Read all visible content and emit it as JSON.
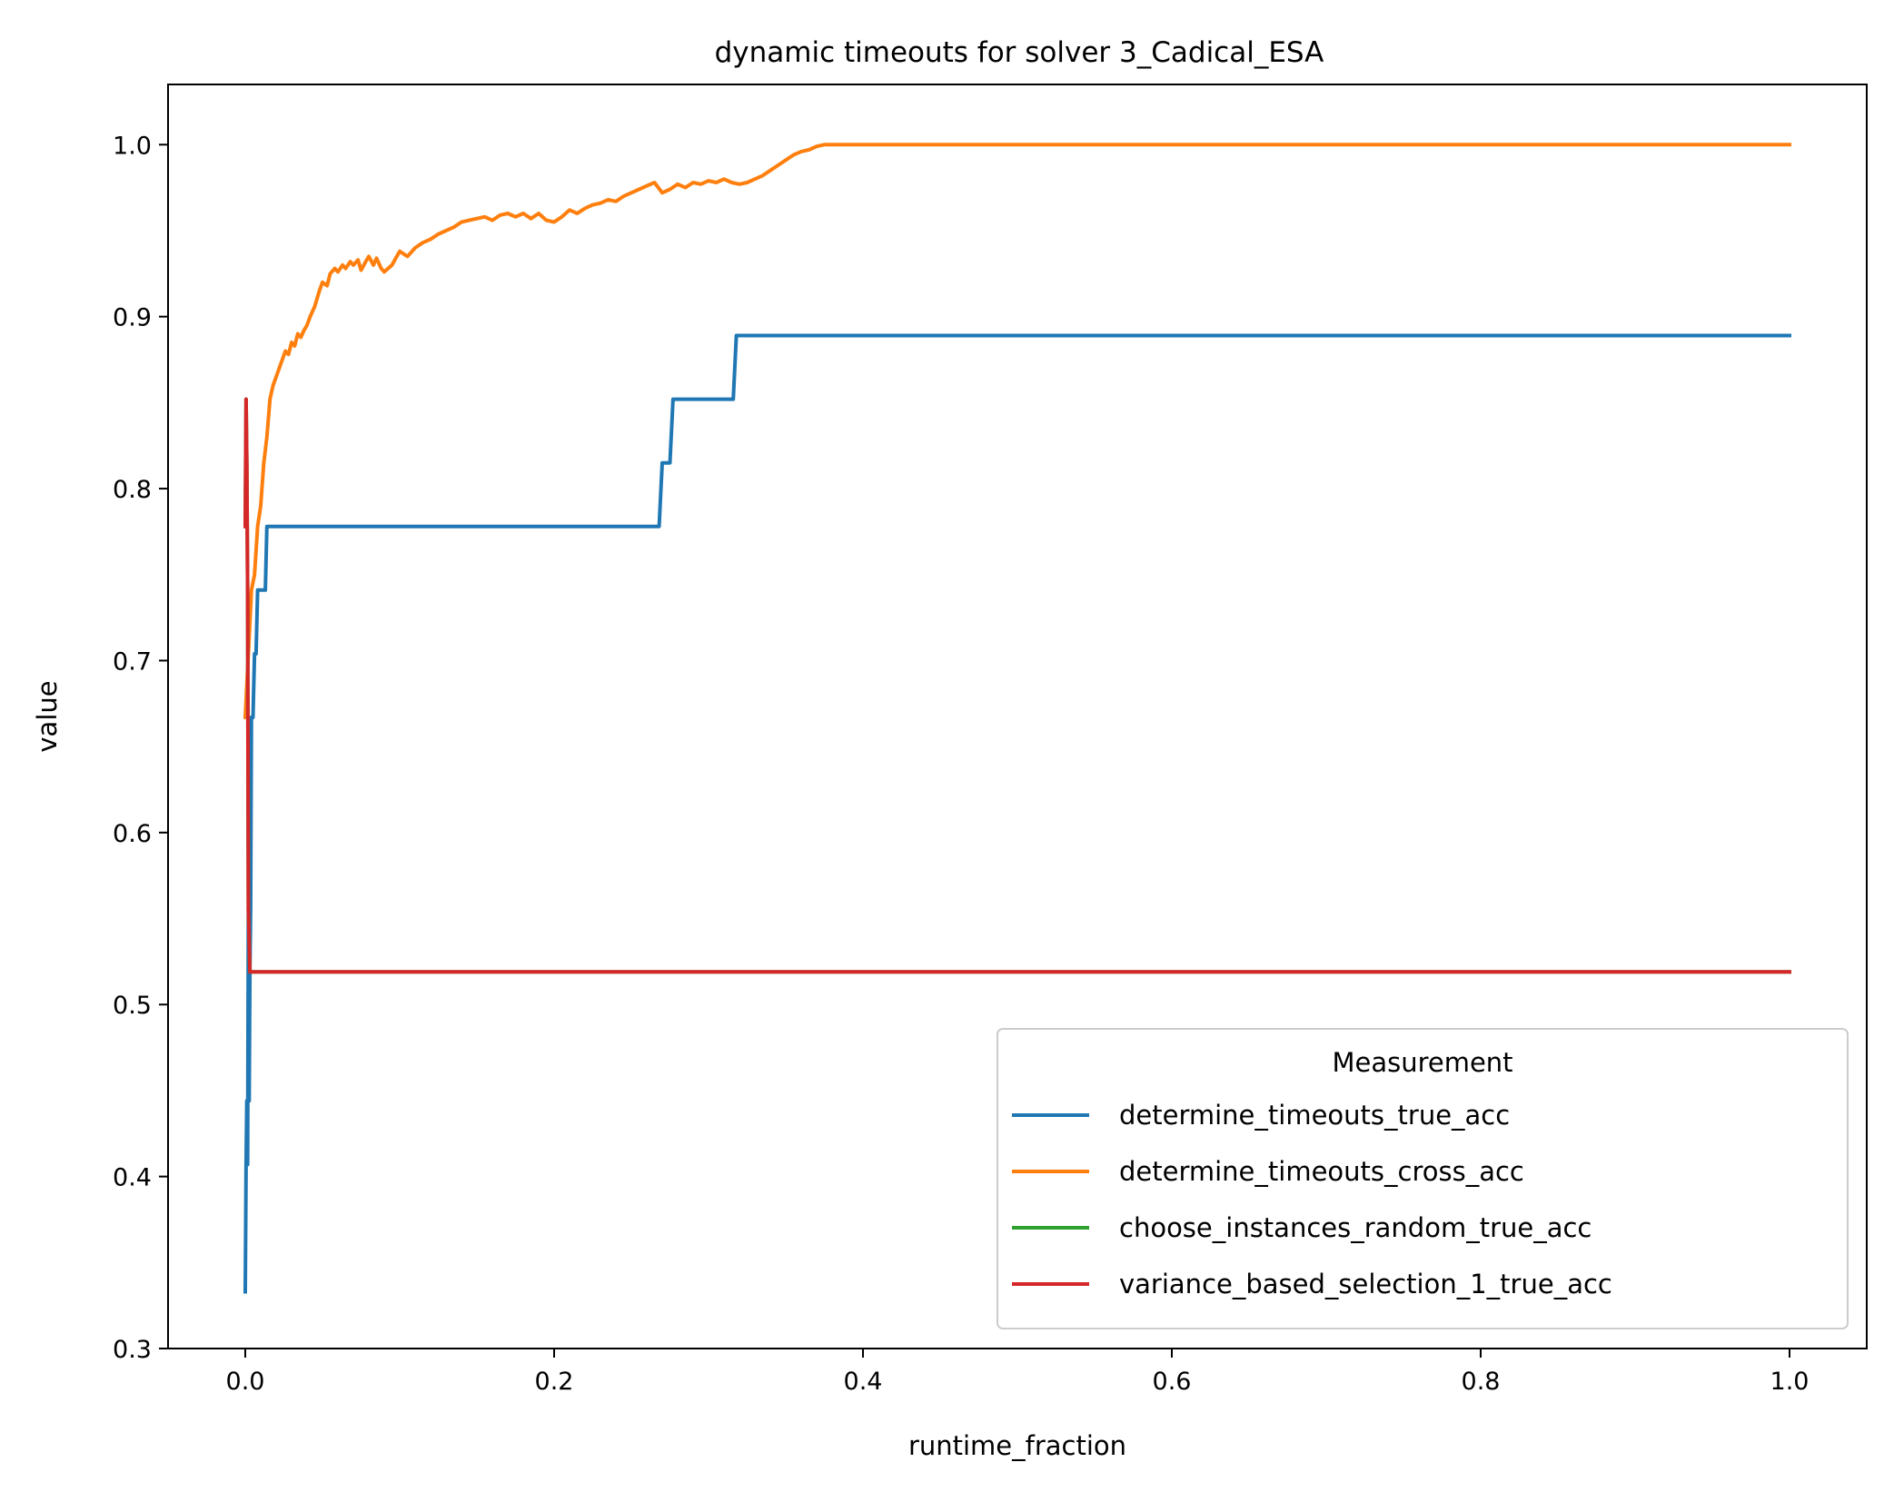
{
  "chart_data": {
    "type": "line",
    "title": "dynamic timeouts for solver 3_Cadical_ESA",
    "xlabel": "runtime_fraction",
    "ylabel": "value",
    "xlim": [
      -0.05,
      1.05
    ],
    "ylim": [
      0.3,
      1.035
    ],
    "xticks": [
      0.0,
      0.2,
      0.4,
      0.6,
      0.8,
      1.0
    ],
    "xtick_labels": [
      "0.0",
      "0.2",
      "0.4",
      "0.6",
      "0.8",
      "1.0"
    ],
    "yticks": [
      0.3,
      0.4,
      0.5,
      0.6,
      0.7,
      0.8,
      0.9,
      1.0
    ],
    "ytick_labels": [
      "0.3",
      "0.4",
      "0.5",
      "0.6",
      "0.7",
      "0.8",
      "0.9",
      "1.0"
    ],
    "grid": false,
    "legend": {
      "title": "Measurement",
      "placement": "lower-right"
    },
    "series": [
      {
        "name": "determine_timeouts_true_acc",
        "color": "#1f77b4",
        "x": [
          0.0,
          0.0005,
          0.001,
          0.0015,
          0.002,
          0.0025,
          0.003,
          0.0035,
          0.004,
          0.005,
          0.006,
          0.007,
          0.008,
          0.01,
          0.011,
          0.012,
          0.013,
          0.014,
          0.015,
          0.267,
          0.268,
          0.27,
          0.272,
          0.274,
          0.275,
          0.277,
          0.279,
          0.314,
          0.316,
          0.318,
          0.32,
          1.0
        ],
        "y": [
          0.333,
          0.407,
          0.444,
          0.407,
          0.556,
          0.444,
          0.519,
          0.556,
          0.667,
          0.667,
          0.704,
          0.704,
          0.741,
          0.741,
          0.741,
          0.741,
          0.741,
          0.778,
          0.778,
          0.778,
          0.778,
          0.815,
          0.815,
          0.815,
          0.815,
          0.852,
          0.852,
          0.852,
          0.852,
          0.889,
          0.889,
          0.889
        ]
      },
      {
        "name": "determine_timeouts_cross_acc",
        "color": "#ff7f0e",
        "x": [
          0.0,
          0.002,
          0.004,
          0.006,
          0.008,
          0.01,
          0.012,
          0.014,
          0.016,
          0.018,
          0.02,
          0.022,
          0.024,
          0.026,
          0.028,
          0.03,
          0.032,
          0.034,
          0.036,
          0.038,
          0.04,
          0.042,
          0.045,
          0.048,
          0.05,
          0.053,
          0.055,
          0.058,
          0.06,
          0.063,
          0.065,
          0.068,
          0.07,
          0.073,
          0.075,
          0.078,
          0.08,
          0.083,
          0.085,
          0.088,
          0.09,
          0.095,
          0.1,
          0.105,
          0.11,
          0.115,
          0.12,
          0.125,
          0.13,
          0.135,
          0.14,
          0.145,
          0.15,
          0.155,
          0.16,
          0.165,
          0.17,
          0.175,
          0.18,
          0.185,
          0.19,
          0.195,
          0.2,
          0.205,
          0.21,
          0.215,
          0.22,
          0.225,
          0.23,
          0.235,
          0.24,
          0.245,
          0.25,
          0.255,
          0.26,
          0.265,
          0.27,
          0.275,
          0.28,
          0.285,
          0.29,
          0.295,
          0.3,
          0.305,
          0.31,
          0.315,
          0.32,
          0.325,
          0.33,
          0.335,
          0.34,
          0.345,
          0.35,
          0.355,
          0.36,
          0.365,
          0.37,
          0.375,
          0.38,
          0.4,
          0.5,
          0.6,
          0.7,
          0.8,
          0.9,
          1.0
        ],
        "y": [
          0.667,
          0.704,
          0.741,
          0.75,
          0.778,
          0.79,
          0.815,
          0.83,
          0.852,
          0.86,
          0.865,
          0.87,
          0.875,
          0.88,
          0.878,
          0.885,
          0.883,
          0.89,
          0.888,
          0.892,
          0.895,
          0.9,
          0.906,
          0.915,
          0.92,
          0.918,
          0.925,
          0.928,
          0.926,
          0.93,
          0.928,
          0.932,
          0.93,
          0.933,
          0.927,
          0.932,
          0.935,
          0.93,
          0.934,
          0.928,
          0.926,
          0.93,
          0.938,
          0.935,
          0.94,
          0.943,
          0.945,
          0.948,
          0.95,
          0.952,
          0.955,
          0.956,
          0.957,
          0.958,
          0.956,
          0.959,
          0.96,
          0.958,
          0.96,
          0.957,
          0.96,
          0.956,
          0.955,
          0.958,
          0.962,
          0.96,
          0.963,
          0.965,
          0.966,
          0.968,
          0.967,
          0.97,
          0.972,
          0.974,
          0.976,
          0.978,
          0.972,
          0.974,
          0.977,
          0.975,
          0.978,
          0.977,
          0.979,
          0.978,
          0.98,
          0.978,
          0.977,
          0.978,
          0.98,
          0.982,
          0.985,
          0.988,
          0.991,
          0.994,
          0.996,
          0.997,
          0.999,
          1.0,
          1.0,
          1.0,
          1.0,
          1.0,
          1.0,
          1.0,
          1.0,
          1.0
        ]
      },
      {
        "name": "choose_instances_random_true_acc",
        "color": "#2ca02c",
        "x": [
          0.0,
          0.0005,
          0.001,
          0.0015,
          0.002,
          0.003,
          0.004,
          1.0
        ],
        "y": [
          0.778,
          0.852,
          0.815,
          0.741,
          0.556,
          0.519,
          0.519,
          0.519
        ]
      },
      {
        "name": "variance_based_selection_1_true_acc",
        "color": "#d62728",
        "x": [
          0.0,
          0.0005,
          0.001,
          0.0015,
          0.002,
          0.003,
          0.004,
          1.0
        ],
        "y": [
          0.778,
          0.852,
          0.815,
          0.741,
          0.556,
          0.519,
          0.519,
          0.519
        ]
      }
    ]
  }
}
